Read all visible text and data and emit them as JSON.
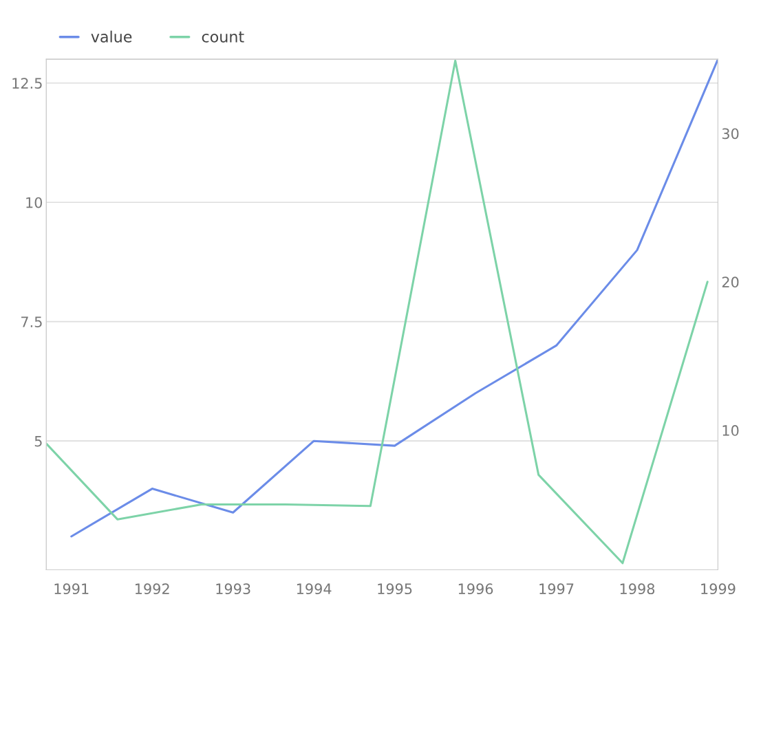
{
  "chart_data": {
    "type": "line",
    "x": [
      1991,
      1992,
      1993,
      1994,
      1995,
      1996,
      1997,
      1998,
      1999
    ],
    "series": [
      {
        "name": "value",
        "color": "#6b8ce8",
        "values": [
          3.0,
          4.0,
          3.5,
          5.0,
          4.9,
          6.0,
          7.0,
          9.0,
          13.0
        ]
      },
      {
        "name": "count",
        "color": "#7dd3a8",
        "axis": "y2",
        "x": [
          1990.69,
          1991.57,
          1992.61,
          1993.65,
          1994.7,
          1995.75,
          1996.78,
          1997.82,
          1998.87
        ],
        "values": [
          9.1,
          4.0,
          5.0,
          5.0,
          4.9,
          34.9,
          7.0,
          1.05,
          20.0
        ]
      }
    ],
    "xlim": [
      1990.69,
      1999
    ],
    "xticks": [
      1991,
      1992,
      1993,
      1994,
      1995,
      1996,
      1997,
      1998,
      1999
    ],
    "ylim": [
      2.3,
      13
    ],
    "yticks": [
      5,
      7.5,
      10,
      12.5
    ],
    "y2lim": [
      0.6,
      35
    ],
    "y2ticks": [
      10,
      20,
      30
    ],
    "grid": "y",
    "legend": "top left",
    "marker": "none",
    "line_style": "solid"
  }
}
